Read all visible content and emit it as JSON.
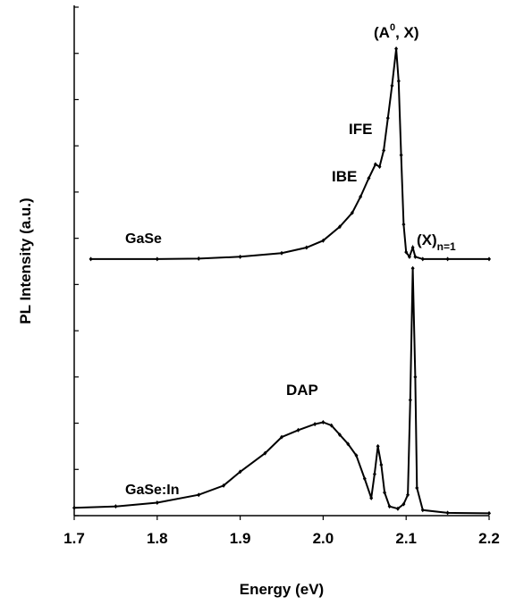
{
  "chart_data": {
    "type": "line",
    "xlabel": "Energy (eV)",
    "ylabel": "PL Intensity (a.u.)",
    "xlim": [
      1.7,
      2.2
    ],
    "ylim": [
      0,
      11
    ],
    "xticks": [
      1.7,
      1.8,
      1.9,
      {
        "value": 2,
        "label": "2.0"
      },
      2.1,
      2.2
    ],
    "yticks": [
      0,
      1,
      2,
      3,
      4,
      5,
      6,
      7,
      8,
      9,
      10,
      11
    ],
    "series": [
      {
        "name": "GaSe",
        "color": "#000000",
        "x": [
          1.72,
          1.8,
          1.85,
          1.9,
          1.95,
          1.98,
          2.0,
          2.02,
          2.035,
          2.045,
          2.055,
          2.063,
          2.068,
          2.073,
          2.078,
          2.083,
          2.088,
          2.091,
          2.094,
          2.097,
          2.1,
          2.104,
          2.108,
          2.111,
          2.12,
          2.15,
          2.2
        ],
        "values": [
          5.55,
          5.55,
          5.56,
          5.6,
          5.68,
          5.8,
          5.95,
          6.25,
          6.55,
          6.9,
          7.3,
          7.6,
          7.55,
          7.9,
          8.6,
          9.3,
          10.1,
          9.4,
          7.8,
          6.3,
          5.7,
          5.6,
          5.8,
          5.6,
          5.55,
          5.55,
          5.55
        ]
      },
      {
        "name": "GaSe:In",
        "color": "#000000",
        "x": [
          1.7,
          1.75,
          1.8,
          1.85,
          1.88,
          1.9,
          1.93,
          1.95,
          1.97,
          1.99,
          2.0,
          2.01,
          2.02,
          2.03,
          2.04,
          2.05,
          2.058,
          2.062,
          2.066,
          2.07,
          2.074,
          2.08,
          2.09,
          2.097,
          2.102,
          2.105,
          2.108,
          2.111,
          2.113,
          2.12,
          2.15,
          2.2
        ],
        "values": [
          0.17,
          0.2,
          0.28,
          0.45,
          0.65,
          0.95,
          1.35,
          1.7,
          1.85,
          1.98,
          2.02,
          1.95,
          1.75,
          1.55,
          1.3,
          0.8,
          0.38,
          0.9,
          1.5,
          1.1,
          0.5,
          0.2,
          0.15,
          0.25,
          0.45,
          2.5,
          5.35,
          3.0,
          0.6,
          0.12,
          0.06,
          0.05
        ]
      }
    ],
    "annotations": [
      {
        "text": "(A",
        "sup": "0",
        "rest": ", X)"
      },
      {
        "text": "IFE"
      },
      {
        "text": "IBE"
      },
      {
        "text": "(X)",
        "sub": "n=1"
      },
      {
        "text": "DAP"
      }
    ]
  }
}
